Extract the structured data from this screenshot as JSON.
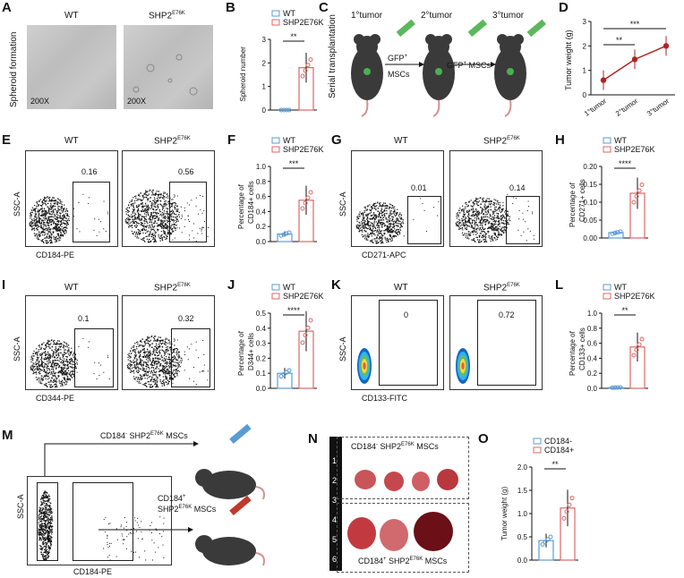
{
  "panels": {
    "A": {
      "letter": "A",
      "ylabel": "Spheroid formation",
      "wt": "WT",
      "mut": "SHP2",
      "mut_sup": "E76K",
      "mag_left": "200X",
      "mag_right": "200X"
    },
    "B": {
      "letter": "B",
      "ylabel": "Spheroid number",
      "legend_wt": "WT",
      "legend_mut": "SHP2",
      "legend_mut_sup": "E76K",
      "sig": "**",
      "ticks": [
        "0",
        "1",
        "2",
        "3"
      ]
    },
    "C": {
      "letter": "C",
      "side_label": "Serial transplantation",
      "tumor1": "1°tumor",
      "tumor2": "2°tumor",
      "tumor3": "3°tumor",
      "arrow1_a": "GFP",
      "arrow1_b": "MSCs",
      "arrow2": "GFP",
      "arrow2_b": "MSCs"
    },
    "D": {
      "letter": "D",
      "ylabel": "Tumor weight (g)",
      "ticks": [
        "0",
        "1",
        "2",
        "3"
      ],
      "xcats": [
        "1°tumor",
        "2°tumor",
        "3°tumor"
      ],
      "sig1": "**",
      "sig2": "***"
    },
    "E": {
      "letter": "E",
      "ylabel": "SSC-A",
      "xlabel": "CD184-PE",
      "wt": "WT",
      "mut": "SHP2",
      "mut_sup": "E76K",
      "val_wt": "0.16",
      "val_mut": "0.56"
    },
    "F": {
      "letter": "F",
      "ylabel_a": "Percentage of",
      "ylabel_b": "CD184",
      "ylabel_c": "cells",
      "legend_wt": "WT",
      "legend_mut": "SHP2",
      "legend_mut_sup": "E76K",
      "sig": "***",
      "ticks": [
        "0.0",
        "0.2",
        "0.4",
        "0.6",
        "0.8",
        "1.0"
      ]
    },
    "G": {
      "letter": "G",
      "ylabel": "SSC-A",
      "xlabel": "CD271-APC",
      "wt": "WT",
      "mut": "SHP2",
      "mut_sup": "E76K",
      "val_wt": "0.01",
      "val_mut": "0.14"
    },
    "H": {
      "letter": "H",
      "ylabel_a": "Percentage of",
      "ylabel_b": "CD271",
      "ylabel_c": "cells",
      "legend_wt": "WT",
      "legend_mut": "SHP2",
      "legend_mut_sup": "E76K",
      "sig": "****",
      "ticks": [
        "0.00",
        "0.05",
        "0.10",
        "0.15",
        "0.20"
      ]
    },
    "I": {
      "letter": "I",
      "ylabel": "SSC-A",
      "xlabel": "CD344-PE",
      "wt": "WT",
      "mut": "SHP2",
      "mut_sup": "E76K",
      "val_wt": "0.1",
      "val_mut": "0.32"
    },
    "J": {
      "letter": "J",
      "ylabel_a": "Percentage of",
      "ylabel_b": "D344",
      "ylabel_c": "cells",
      "legend_wt": "WT",
      "legend_mut": "SHP2",
      "legend_mut_sup": "E76K",
      "sig": "****",
      "ticks": [
        "0.0",
        "0.1",
        "0.2",
        "0.3",
        "0.4",
        "0.5"
      ]
    },
    "K": {
      "letter": "K",
      "ylabel": "SSC-A",
      "xlabel": "CD133-FITC",
      "wt": "WT",
      "mut": "SHP2",
      "mut_sup": "E76K",
      "val_wt": "0",
      "val_mut": "0.72"
    },
    "L": {
      "letter": "L",
      "ylabel_a": "Percentage of",
      "ylabel_b": "CD133",
      "ylabel_c": "cells",
      "legend_wt": "WT",
      "legend_mut": "SHP2",
      "legend_mut_sup": "E76K",
      "sig": "**",
      "ticks": [
        "0.0",
        "0.2",
        "0.4",
        "0.6",
        "0.8",
        "1.0"
      ]
    },
    "M": {
      "letter": "M",
      "ylabel": "SSC-A",
      "xlabel": "CD184-PE",
      "top_label_a": "CD184",
      "top_label_b": " SHP2",
      "top_label_sup": "E76K",
      "top_label_c": " MSCs",
      "bot_label_a": "CD184",
      "bot_label_b": "SHP2",
      "bot_label_sup": "E76K",
      "bot_label_c": " MSCs"
    },
    "N": {
      "letter": "N",
      "top_a": "CD184",
      "top_b": " SHP2",
      "top_sup": "E76K",
      "top_c": " MSCs",
      "bot_a": "CD184",
      "bot_b": " SHP2",
      "bot_sup": "E76K",
      "bot_c": " MSCs",
      "ruler": [
        "1",
        "2",
        "3",
        "4",
        "5",
        "6"
      ]
    },
    "O": {
      "letter": "O",
      "ylabel": "Tumor weight (g)",
      "legend_a": "CD184",
      "legend_b": "CD184",
      "sig": "**",
      "ticks": [
        "0.0",
        "0.5",
        "1.0",
        "1.5",
        "2.0"
      ]
    }
  },
  "colors": {
    "wt": "#5b9bd5",
    "mut": "#e06666",
    "line": "#b22222",
    "cd184neg": "#5b9bd5",
    "cd184pos": "#e06666"
  },
  "chart_data": [
    {
      "panel": "B",
      "type": "bar",
      "categories": [
        "WT",
        "SHP2E76K"
      ],
      "values": [
        0,
        1.8
      ],
      "ylim": [
        0,
        3
      ],
      "ylabel": "Spheroid number"
    },
    {
      "panel": "D",
      "type": "line",
      "categories": [
        "1°tumor",
        "2°tumor",
        "3°tumor"
      ],
      "values": [
        0.6,
        1.45,
        2.0
      ],
      "ylim": [
        0,
        3
      ],
      "ylabel": "Tumor weight (g)"
    },
    {
      "panel": "F",
      "type": "bar",
      "categories": [
        "WT",
        "SHP2E76K"
      ],
      "values": [
        0.1,
        0.55
      ],
      "ylim": [
        0,
        1.0
      ],
      "ylabel": "Percentage of CD184+ cells"
    },
    {
      "panel": "H",
      "type": "bar",
      "categories": [
        "WT",
        "SHP2E76K"
      ],
      "values": [
        0.015,
        0.125
      ],
      "ylim": [
        0,
        0.2
      ],
      "ylabel": "Percentage of CD271+ cells"
    },
    {
      "panel": "J",
      "type": "bar",
      "categories": [
        "WT",
        "SHP2E76K"
      ],
      "values": [
        0.1,
        0.38
      ],
      "ylim": [
        0,
        0.5
      ],
      "ylabel": "Percentage of D344+ cells"
    },
    {
      "panel": "L",
      "type": "bar",
      "categories": [
        "WT",
        "SHP2E76K"
      ],
      "values": [
        0.01,
        0.55
      ],
      "ylim": [
        0,
        1.0
      ],
      "ylabel": "Percentage of CD133+ cells"
    },
    {
      "panel": "O",
      "type": "bar",
      "categories": [
        "CD184-",
        "CD184+"
      ],
      "values": [
        0.42,
        1.12
      ],
      "ylim": [
        0,
        2.0
      ],
      "ylabel": "Tumor weight (g)"
    }
  ]
}
